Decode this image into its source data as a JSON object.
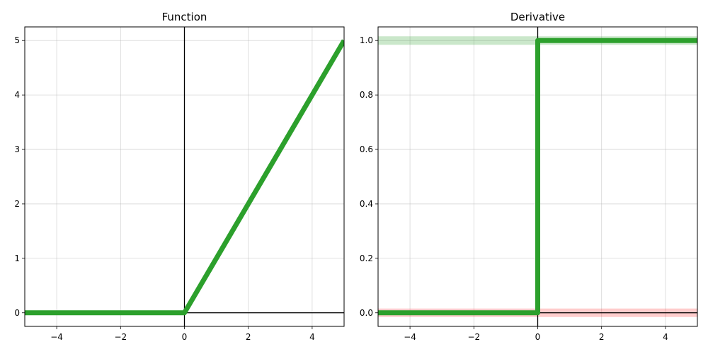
{
  "chart_data": [
    {
      "type": "line",
      "title": "Function",
      "xlabel": "",
      "ylabel": "",
      "xlim": [
        -5,
        5
      ],
      "ylim": [
        -0.25,
        5.25
      ],
      "xticks": [
        -4,
        -2,
        0,
        2,
        4
      ],
      "xtick_labels": [
        "−4",
        "−2",
        "0",
        "2",
        "4"
      ],
      "yticks": [
        0,
        1,
        2,
        3,
        4,
        5
      ],
      "ytick_labels": [
        "0",
        "1",
        "2",
        "3",
        "4",
        "5"
      ],
      "grid": true,
      "series": [
        {
          "color": "#2ca02c",
          "x": [
            -5,
            0,
            5
          ],
          "y": [
            0,
            0,
            5
          ]
        }
      ],
      "reference_lines": {
        "x": 0,
        "y": 0,
        "color": "#000000"
      },
      "bands": []
    },
    {
      "type": "line",
      "title": "Derivative",
      "xlabel": "",
      "ylabel": "",
      "xlim": [
        -5,
        5
      ],
      "ylim": [
        -0.05,
        1.05
      ],
      "xticks": [
        -4,
        -2,
        0,
        2,
        4
      ],
      "xtick_labels": [
        "−4",
        "−2",
        "0",
        "2",
        "4"
      ],
      "yticks": [
        0,
        0.2,
        0.4,
        0.6,
        0.8,
        1.0
      ],
      "ytick_labels": [
        "0.0",
        "0.2",
        "0.4",
        "0.6",
        "0.8",
        "1.0"
      ],
      "grid": true,
      "series": [
        {
          "color": "#2ca02c",
          "x": [
            -5,
            0,
            0,
            5
          ],
          "y": [
            0,
            0,
            1,
            1
          ]
        }
      ],
      "reference_lines": {
        "x": 0,
        "y": 0,
        "color": "#000000"
      },
      "bands": [
        {
          "y": 1.0,
          "color": "#2ca02c",
          "opacity": 0.25
        },
        {
          "y": 0.0,
          "color": "#ff0000",
          "opacity": 0.2
        }
      ]
    }
  ]
}
